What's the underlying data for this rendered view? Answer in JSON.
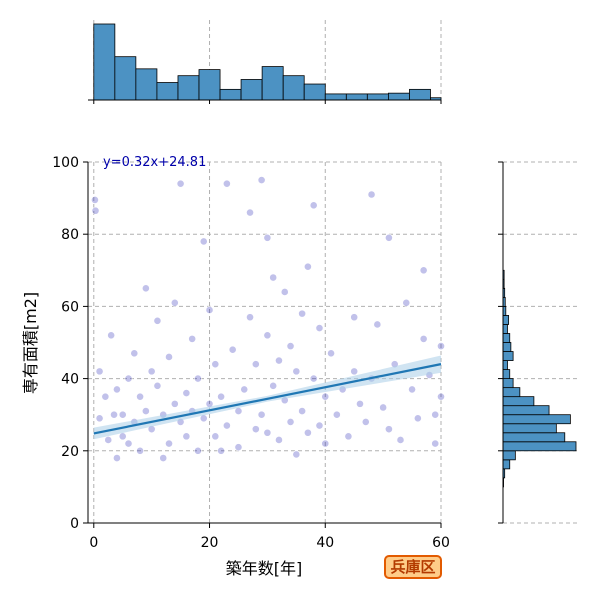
{
  "chart_data": {
    "type": "scatter",
    "subtype": "jointplot",
    "xlabel": "築年数[年]",
    "ylabel": "専有面積[m2]",
    "xlim": [
      -1,
      60
    ],
    "ylim": [
      0,
      100
    ],
    "x_ticks": [
      0,
      20,
      40,
      60
    ],
    "y_ticks": [
      0,
      20,
      40,
      60,
      80,
      100
    ],
    "grid": true,
    "point_color": "#3333bb",
    "regression": {
      "slope": 0.32,
      "intercept": 24.81,
      "label": "y=0.32x+24.81",
      "color": "#1f77b4",
      "band_color": "#aacde8"
    },
    "badge_text": "兵庫区",
    "badge_colors": {
      "border": "#e25a00",
      "fill": "#ffcc88",
      "text": "#b33a00"
    },
    "marginal_x": {
      "bin_edges": [
        0,
        3.64,
        7.27,
        10.91,
        14.55,
        18.18,
        21.82,
        25.45,
        29.09,
        32.73,
        36.36,
        40.0,
        43.64,
        47.27,
        50.91,
        54.55,
        58.18,
        60
      ],
      "counts": [
        100,
        57,
        41,
        23,
        32,
        40,
        14,
        27,
        44,
        32,
        21,
        8,
        8,
        8,
        9,
        14,
        3
      ]
    },
    "marginal_y": {
      "bin_edges": [
        10,
        12.5,
        15,
        17.5,
        20,
        22.5,
        25,
        27.5,
        30,
        32.5,
        35,
        37.5,
        40,
        42.5,
        45,
        47.5,
        50,
        52.5,
        55,
        57.5,
        60,
        62.5,
        65,
        67.5,
        70
      ],
      "counts": [
        1,
        3,
        12,
        22,
        130,
        110,
        95,
        120,
        82,
        55,
        30,
        18,
        12,
        8,
        18,
        14,
        12,
        8,
        10,
        5,
        4,
        3,
        2,
        2
      ]
    },
    "points": [
      [
        0.2,
        89.5
      ],
      [
        0.3,
        86.5
      ],
      [
        1,
        42
      ],
      [
        1,
        29
      ],
      [
        2,
        35
      ],
      [
        2.5,
        23
      ],
      [
        3,
        52
      ],
      [
        3.5,
        30
      ],
      [
        4,
        18
      ],
      [
        4,
        37
      ],
      [
        5,
        30
      ],
      [
        5,
        24
      ],
      [
        6,
        40
      ],
      [
        6,
        22
      ],
      [
        7,
        28
      ],
      [
        7,
        47
      ],
      [
        8,
        35
      ],
      [
        8,
        20
      ],
      [
        9,
        31
      ],
      [
        9,
        65
      ],
      [
        10,
        42
      ],
      [
        10,
        26
      ],
      [
        11,
        38
      ],
      [
        11,
        56
      ],
      [
        12,
        30
      ],
      [
        12,
        18
      ],
      [
        13,
        46
      ],
      [
        13,
        22
      ],
      [
        14,
        33
      ],
      [
        14,
        61
      ],
      [
        15,
        28
      ],
      [
        15,
        94
      ],
      [
        16,
        36
      ],
      [
        16,
        24
      ],
      [
        17,
        51
      ],
      [
        17,
        31
      ],
      [
        18,
        40
      ],
      [
        18,
        20
      ],
      [
        19,
        78
      ],
      [
        19,
        29
      ],
      [
        20,
        59
      ],
      [
        20,
        33
      ],
      [
        21,
        24
      ],
      [
        21,
        44
      ],
      [
        22,
        20
      ],
      [
        22,
        35
      ],
      [
        23,
        94
      ],
      [
        23,
        27
      ],
      [
        24,
        48
      ],
      [
        25,
        31
      ],
      [
        25,
        21
      ],
      [
        26,
        37
      ],
      [
        27,
        86
      ],
      [
        27,
        57
      ],
      [
        28,
        44
      ],
      [
        28,
        26
      ],
      [
        29,
        95
      ],
      [
        29,
        30
      ],
      [
        30,
        79
      ],
      [
        30,
        52
      ],
      [
        30,
        25
      ],
      [
        31,
        68
      ],
      [
        31,
        38
      ],
      [
        32,
        45
      ],
      [
        32,
        23
      ],
      [
        33,
        64
      ],
      [
        33,
        34
      ],
      [
        34,
        49
      ],
      [
        34,
        28
      ],
      [
        35,
        42
      ],
      [
        35,
        19
      ],
      [
        36,
        58
      ],
      [
        36,
        31
      ],
      [
        37,
        71
      ],
      [
        37,
        25
      ],
      [
        38,
        40
      ],
      [
        38,
        88
      ],
      [
        39,
        27
      ],
      [
        39,
        54
      ],
      [
        40,
        35
      ],
      [
        40,
        22
      ],
      [
        41,
        47
      ],
      [
        42,
        30
      ],
      [
        43,
        37
      ],
      [
        44,
        24
      ],
      [
        45,
        57
      ],
      [
        45,
        42
      ],
      [
        46,
        33
      ],
      [
        47,
        28
      ],
      [
        48,
        91
      ],
      [
        48,
        40
      ],
      [
        49,
        55
      ],
      [
        50,
        32
      ],
      [
        51,
        79
      ],
      [
        51,
        26
      ],
      [
        52,
        44
      ],
      [
        53,
        23
      ],
      [
        54,
        61
      ],
      [
        55,
        37
      ],
      [
        56,
        29
      ],
      [
        57,
        70
      ],
      [
        57,
        51
      ],
      [
        58,
        41
      ],
      [
        59,
        22
      ],
      [
        59,
        30
      ],
      [
        60,
        35
      ],
      [
        60,
        49
      ]
    ]
  }
}
